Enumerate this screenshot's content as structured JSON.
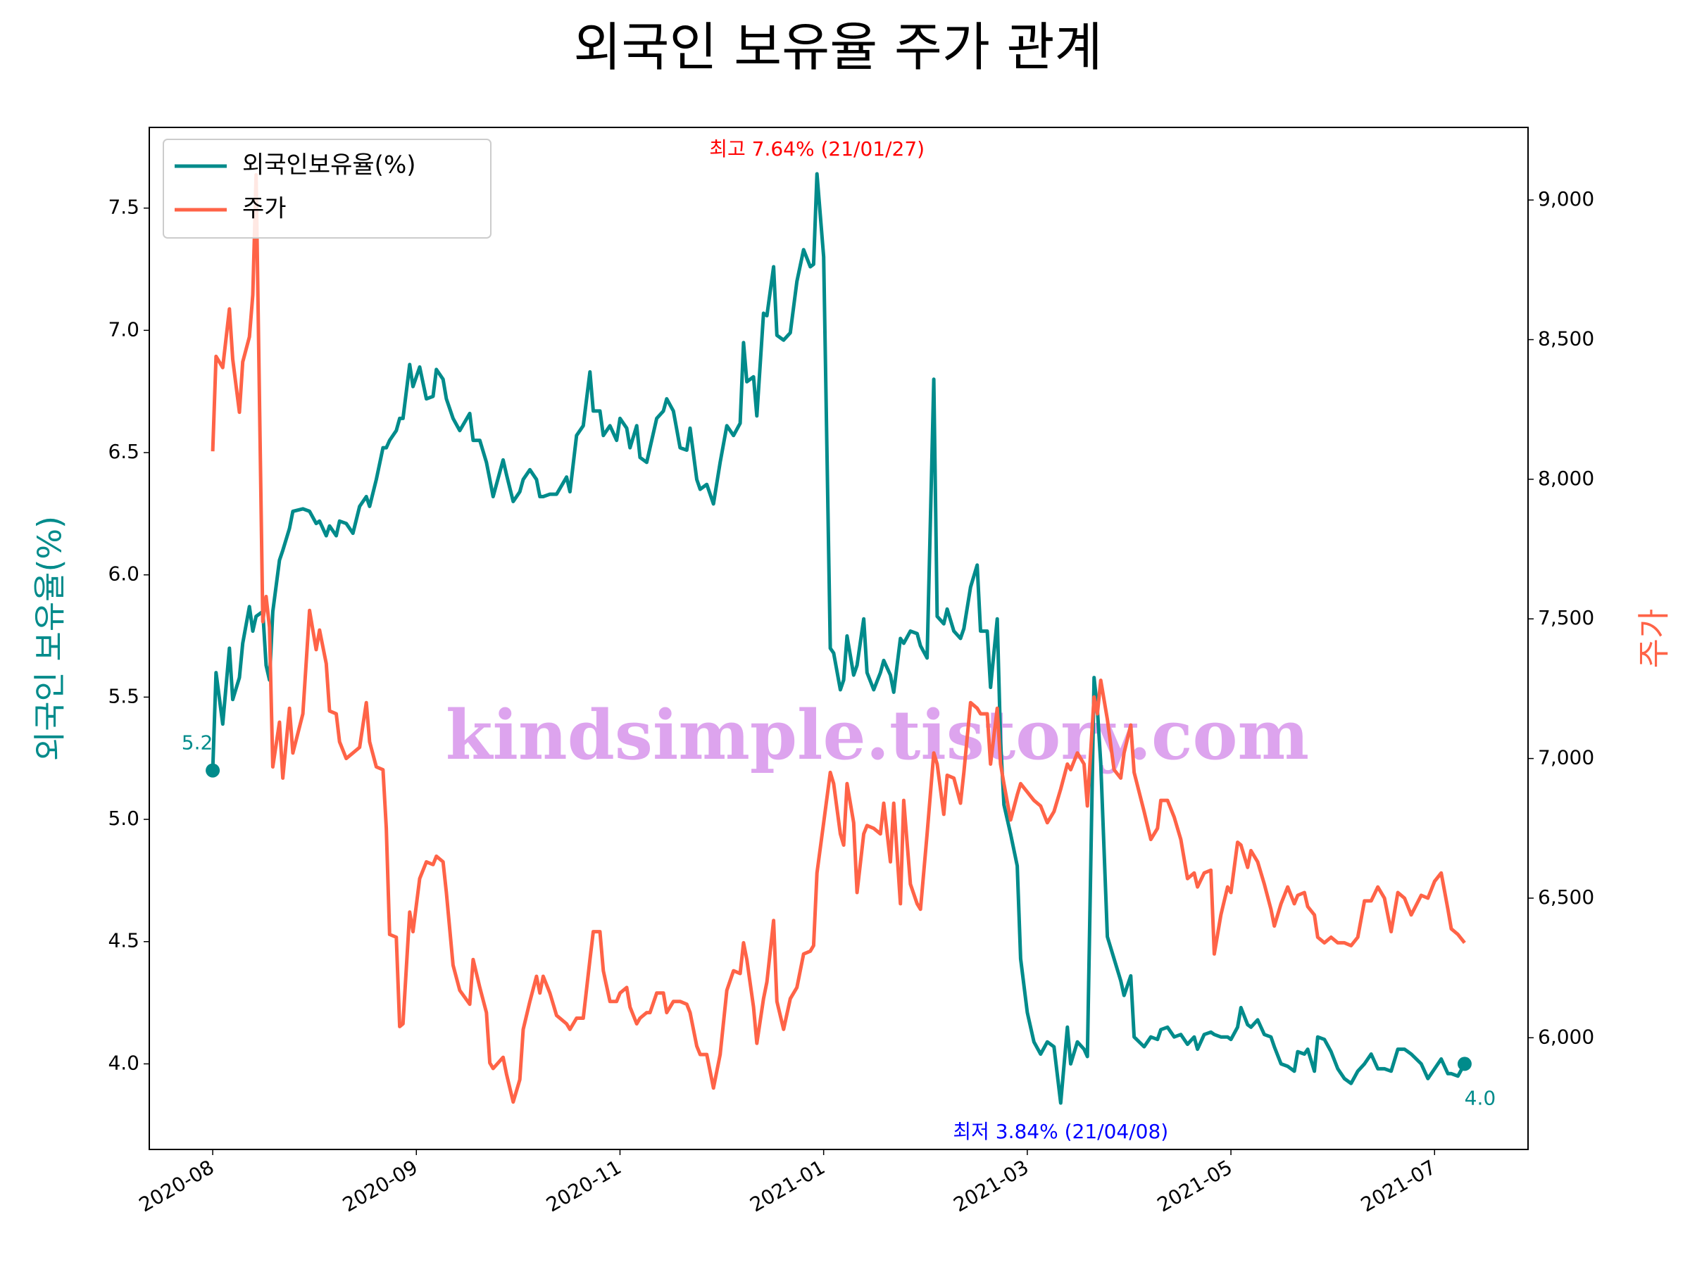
{
  "chart_data": {
    "type": "line",
    "title": "외국인 보유율 주가 관계",
    "ylabel": "외국인 보유율(%)",
    "y2label": "주가",
    "watermark": "kindsimple.tistory.com",
    "legend": "upper left",
    "xlim": [
      -19,
      394
    ],
    "xticks": [
      {
        "value": 0,
        "label": "2020-08"
      },
      {
        "value": 61,
        "label": "2020-09"
      },
      {
        "value": 122,
        "label": "2020-11"
      },
      {
        "value": 183,
        "label": "2021-01"
      },
      {
        "value": 244,
        "label": "2021-03"
      },
      {
        "value": 305,
        "label": "2021-05"
      },
      {
        "value": 366,
        "label": "2021-07"
      }
    ],
    "ylim": [
      3.65,
      7.83
    ],
    "yticks": [
      {
        "value": 4,
        "label": "4.0"
      },
      4.5,
      {
        "value": 5,
        "label": "5.0"
      },
      5.5,
      {
        "value": 6,
        "label": "6.0"
      },
      6.5,
      {
        "value": 7,
        "label": "7.0"
      },
      7.5
    ],
    "y2lim": [
      5600,
      9260
    ],
    "y2ticks": [
      {
        "value": 6000,
        "label": "6,000"
      },
      {
        "value": 6500,
        "label": "6,500"
      },
      {
        "value": 7000,
        "label": "7,000"
      },
      {
        "value": 7500,
        "label": "7,500"
      },
      {
        "value": 8000,
        "label": "8,000"
      },
      {
        "value": 8500,
        "label": "8,500"
      },
      {
        "value": 9000,
        "label": "9,000"
      }
    ],
    "x": [
      0,
      1,
      3,
      5,
      6,
      8,
      9,
      11,
      12,
      13,
      15,
      16,
      17,
      18,
      20,
      21,
      23,
      24,
      27,
      29,
      31,
      32,
      34,
      35,
      37,
      38,
      40,
      42,
      44,
      46,
      47,
      49,
      51,
      52,
      53,
      55,
      56,
      57,
      59,
      60,
      62,
      64,
      66,
      67,
      69,
      70,
      72,
      74,
      77,
      78,
      80,
      82,
      83,
      84,
      87,
      88,
      90,
      92,
      93,
      95,
      97,
      98,
      99,
      101,
      103,
      106,
      107,
      109,
      111,
      113,
      114,
      116,
      117,
      119,
      121,
      122,
      124,
      125,
      127,
      128,
      130,
      131,
      133,
      135,
      136,
      138,
      140,
      142,
      143,
      145,
      146,
      148,
      150,
      152,
      154,
      156,
      158,
      159,
      160,
      162,
      163,
      165,
      166,
      168,
      169,
      171,
      173,
      175,
      177,
      179,
      180,
      181,
      183,
      185,
      186,
      188,
      189,
      190,
      192,
      193,
      195,
      196,
      198,
      200,
      201,
      203,
      204,
      206,
      207,
      209,
      211,
      212,
      214,
      216,
      217,
      219,
      220,
      222,
      224,
      225,
      227,
      229,
      230,
      232,
      233,
      235,
      236,
      237,
      239,
      241,
      242,
      244,
      246,
      248,
      250,
      252,
      254,
      256,
      257,
      259,
      261,
      262,
      264,
      265,
      266,
      268,
      270,
      272,
      273,
      275,
      276,
      279,
      281,
      283,
      284,
      286,
      288,
      290,
      292,
      294,
      295,
      297,
      299,
      300,
      302,
      304,
      305,
      307,
      308,
      310,
      311,
      313,
      315,
      317,
      318,
      320,
      322,
      324,
      325,
      327,
      328,
      330,
      331,
      333,
      335,
      337,
      339,
      341,
      343,
      345,
      347,
      349,
      351,
      353,
      355,
      357,
      359,
      362,
      364,
      366,
      368,
      370,
      371,
      373,
      375
    ],
    "series": [
      {
        "name": "외국인보유율(%)",
        "color": "#008b8b",
        "axis": "y",
        "endpoint_markers": true,
        "values": [
          5.2,
          5.6,
          5.39,
          5.7,
          5.49,
          5.58,
          5.72,
          5.87,
          5.77,
          5.83,
          5.85,
          5.63,
          5.57,
          5.85,
          6.06,
          6.1,
          6.19,
          6.26,
          6.27,
          6.26,
          6.21,
          6.22,
          6.16,
          6.2,
          6.16,
          6.22,
          6.21,
          6.17,
          6.28,
          6.32,
          6.28,
          6.39,
          6.52,
          6.52,
          6.55,
          6.59,
          6.64,
          6.64,
          6.86,
          6.77,
          6.85,
          6.72,
          6.73,
          6.84,
          6.8,
          6.72,
          6.64,
          6.59,
          6.66,
          6.55,
          6.55,
          6.46,
          6.39,
          6.32,
          6.47,
          6.41,
          6.3,
          6.34,
          6.39,
          6.43,
          6.39,
          6.32,
          6.32,
          6.33,
          6.33,
          6.4,
          6.34,
          6.57,
          6.61,
          6.83,
          6.67,
          6.67,
          6.57,
          6.61,
          6.55,
          6.64,
          6.6,
          6.52,
          6.61,
          6.48,
          6.46,
          6.52,
          6.64,
          6.67,
          6.72,
          6.67,
          6.52,
          6.51,
          6.6,
          6.39,
          6.35,
          6.37,
          6.29,
          6.46,
          6.61,
          6.57,
          6.62,
          6.95,
          6.79,
          6.81,
          6.65,
          7.07,
          7.06,
          7.26,
          6.98,
          6.96,
          6.99,
          7.2,
          7.33,
          7.26,
          7.27,
          7.64,
          7.3,
          5.7,
          5.68,
          5.53,
          5.57,
          5.75,
          5.59,
          5.63,
          5.82,
          5.6,
          5.53,
          5.6,
          5.65,
          5.59,
          5.52,
          5.74,
          5.72,
          5.77,
          5.76,
          5.71,
          5.66,
          6.8,
          5.83,
          5.8,
          5.86,
          5.77,
          5.74,
          5.78,
          5.95,
          6.04,
          5.77,
          5.77,
          5.54,
          5.82,
          5.32,
          5.06,
          4.94,
          4.81,
          4.43,
          4.21,
          4.09,
          4.04,
          4.09,
          4.07,
          3.84,
          4.15,
          4.0,
          4.09,
          4.06,
          4.03,
          5.58,
          5.45,
          5.23,
          4.52,
          4.43,
          4.34,
          4.28,
          4.36,
          4.11,
          4.07,
          4.11,
          4.1,
          4.14,
          4.15,
          4.11,
          4.12,
          4.08,
          4.11,
          4.06,
          4.12,
          4.13,
          4.12,
          4.11,
          4.11,
          4.1,
          4.15,
          4.23,
          4.16,
          4.15,
          4.18,
          4.12,
          4.11,
          4.07,
          4.0,
          3.99,
          3.97,
          4.05,
          4.04,
          4.06,
          3.97,
          4.11,
          4.1,
          4.05,
          3.98,
          3.94,
          3.92,
          3.97,
          4.0,
          4.04,
          3.98,
          3.98,
          3.97,
          4.06,
          4.06,
          4.04,
          4.0,
          3.94,
          3.98,
          4.02,
          3.96,
          3.96,
          3.95,
          4.0
        ]
      },
      {
        "name": "주가",
        "color": "#ff6347",
        "axis": "y2",
        "values": [
          8100,
          8440,
          8400,
          8610,
          8430,
          8240,
          8420,
          8510,
          8660,
          9090,
          7490,
          7580,
          7470,
          6970,
          7130,
          6930,
          7180,
          7020,
          7160,
          7530,
          7390,
          7460,
          7340,
          7170,
          7160,
          7060,
          7000,
          7020,
          7040,
          7200,
          7060,
          6970,
          6960,
          6750,
          6370,
          6360,
          6040,
          6050,
          6450,
          6380,
          6570,
          6630,
          6620,
          6650,
          6630,
          6520,
          6260,
          6170,
          6120,
          6280,
          6180,
          6090,
          5910,
          5890,
          5930,
          5870,
          5770,
          5850,
          6030,
          6130,
          6220,
          6160,
          6220,
          6160,
          6080,
          6050,
          6030,
          6070,
          6070,
          6280,
          6380,
          6380,
          6240,
          6130,
          6130,
          6160,
          6180,
          6110,
          6050,
          6070,
          6090,
          6090,
          6160,
          6160,
          6090,
          6130,
          6130,
          6120,
          6090,
          5970,
          5940,
          5940,
          5820,
          5940,
          6170,
          6240,
          6230,
          6340,
          6280,
          6110,
          5980,
          6140,
          6200,
          6420,
          6130,
          6030,
          6140,
          6180,
          6300,
          6310,
          6330,
          6590,
          6770,
          6950,
          6910,
          6730,
          6690,
          6910,
          6770,
          6520,
          6730,
          6760,
          6750,
          6730,
          6840,
          6630,
          6840,
          6480,
          6850,
          6550,
          6480,
          6460,
          6730,
          7020,
          6980,
          6800,
          6940,
          6930,
          6840,
          6950,
          7200,
          7180,
          7160,
          7160,
          6980,
          7180,
          6980,
          6910,
          6780,
          6870,
          6910,
          6880,
          6850,
          6830,
          6770,
          6810,
          6890,
          6980,
          6960,
          7020,
          6980,
          6830,
          7220,
          7160,
          7280,
          7140,
          6960,
          6930,
          7020,
          7120,
          6950,
          6810,
          6710,
          6750,
          6850,
          6850,
          6790,
          6710,
          6570,
          6590,
          6540,
          6590,
          6600,
          6300,
          6440,
          6540,
          6520,
          6700,
          6690,
          6610,
          6670,
          6630,
          6550,
          6460,
          6400,
          6480,
          6540,
          6480,
          6510,
          6520,
          6470,
          6440,
          6360,
          6340,
          6360,
          6340,
          6340,
          6330,
          6360,
          6490,
          6490,
          6540,
          6500,
          6380,
          6520,
          6500,
          6440,
          6510,
          6500,
          6560,
          6590,
          6460,
          6390,
          6370,
          6340
        ]
      }
    ],
    "annotations": [
      {
        "text": "최고 7.64% (21/01/27)",
        "x": 181,
        "y": 7.64,
        "color": "#ff0000"
      },
      {
        "text": "최저 3.84% (21/04/08)",
        "x": 254,
        "y": 3.84,
        "color": "#0000ff"
      },
      {
        "text": "5.2",
        "x": 0,
        "y": 5.2,
        "color": "#008b8b"
      },
      {
        "text": "4.0",
        "x": 375,
        "y": 4.0,
        "color": "#008b8b"
      }
    ]
  }
}
